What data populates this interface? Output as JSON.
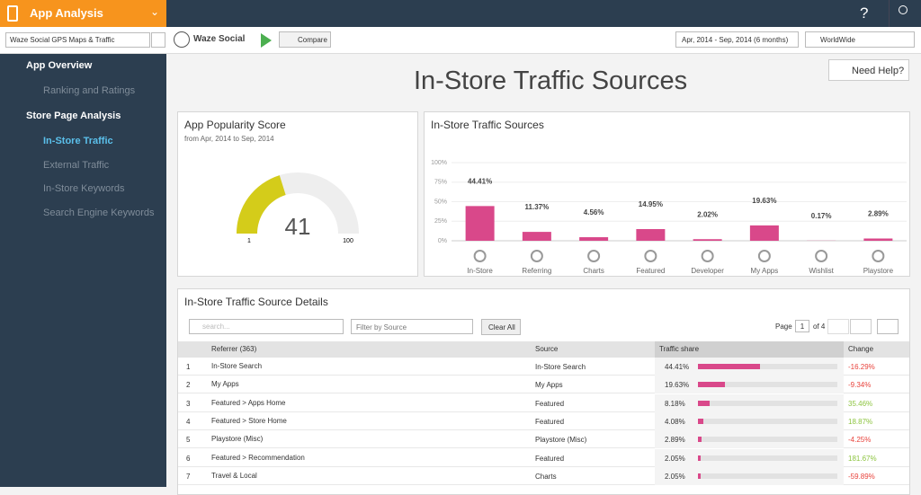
{
  "header": {
    "title": "App Analysis",
    "help": "?"
  },
  "toolbar": {
    "app_search": "Waze Social GPS Maps & Traffic",
    "app_name": "Waze Social",
    "compare": "Compare",
    "date_range": "Apr, 2014 - Sep, 2014 (6 months)",
    "region": "WorldWide"
  },
  "sidebar": [
    {
      "label": "App Overview",
      "items": [
        "Ranking and Ratings"
      ]
    },
    {
      "label": "Store Page Analysis",
      "items": [
        "In-Store Traffic",
        "External Traffic",
        "In-Store Keywords",
        "Search Engine Keywords"
      ]
    }
  ],
  "page_title": "In-Store Traffic Sources",
  "need_help": "Need Help?",
  "popularity": {
    "title": "App Popularity Score",
    "subtitle": "from Apr, 2014 to Sep, 2014",
    "score": 41,
    "min": 1,
    "max": 100
  },
  "chart_data": {
    "type": "bar",
    "title": "In-Store Traffic Sources",
    "categories": [
      "In-Store",
      "Referring",
      "Charts",
      "Featured",
      "Developer",
      "My Apps",
      "Wishlist",
      "Playstore"
    ],
    "values": [
      44.41,
      11.37,
      4.56,
      14.95,
      2.02,
      19.63,
      0.17,
      2.89
    ],
    "value_labels": [
      "44.41%",
      "11.37%",
      "4.56%",
      "14.95%",
      "2.02%",
      "19.63%",
      "0.17%",
      "2.89%"
    ],
    "color": "#d9488a",
    "ylim": [
      0,
      100
    ],
    "yticks": [
      {
        "value": 0,
        "label": "0%"
      },
      {
        "value": 25,
        "label": "25%"
      },
      {
        "value": 50,
        "label": "50%"
      },
      {
        "value": 75,
        "label": "75%"
      },
      {
        "value": 100,
        "label": "100%"
      }
    ],
    "grid": true
  },
  "details": {
    "title": "In-Store Traffic Source Details",
    "search_placeholder": "search...",
    "filter": "Filter by Source",
    "clear": "Clear All",
    "page_label": "Page",
    "page": "1",
    "page_of": "of 4",
    "columns": [
      "Referrer (363)",
      "Source",
      "Traffic share",
      "Change"
    ],
    "rows": [
      {
        "rank": "1",
        "referrer": "In-Store Search",
        "source": "In-Store Search",
        "share": 44.41,
        "share_label": "44.41%",
        "change": -16.29,
        "change_label": "-16.29%"
      },
      {
        "rank": "2",
        "referrer": "My Apps",
        "source": "My Apps",
        "share": 19.63,
        "share_label": "19.63%",
        "change": -9.34,
        "change_label": "-9.34%"
      },
      {
        "rank": "3",
        "referrer": "Featured > Apps Home",
        "source": "Featured",
        "share": 8.18,
        "share_label": "8.18%",
        "change": 35.46,
        "change_label": "35.46%"
      },
      {
        "rank": "4",
        "referrer": "Featured > Store Home",
        "source": "Featured",
        "share": 4.08,
        "share_label": "4.08%",
        "change": 18.87,
        "change_label": "18.87%"
      },
      {
        "rank": "5",
        "referrer": "Playstore (Misc)",
        "source": "Playstore (Misc)",
        "share": 2.89,
        "share_label": "2.89%",
        "change": -4.25,
        "change_label": "-4.25%"
      },
      {
        "rank": "6",
        "referrer": "Featured > Recommendation",
        "source": "Featured",
        "share": 2.05,
        "share_label": "2.05%",
        "change": 181.67,
        "change_label": "181.67%"
      },
      {
        "rank": "7",
        "referrer": "Travel & Local",
        "source": "Charts",
        "share": 2.05,
        "share_label": "2.05%",
        "change": -59.89,
        "change_label": "-59.89%"
      }
    ]
  }
}
